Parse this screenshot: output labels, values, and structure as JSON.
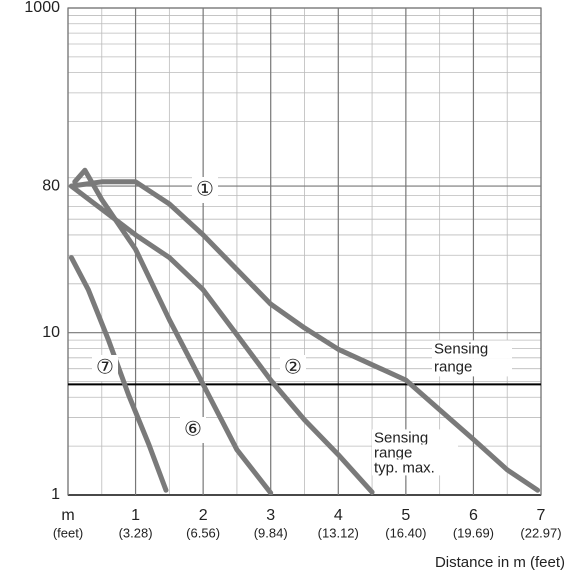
{
  "chart_data": {
    "type": "line",
    "x_label": "Distance in m (feet)",
    "xlim": [
      0,
      7
    ],
    "xticks": [
      {
        "value": 0,
        "label": "m"
      },
      1,
      2,
      3,
      4,
      5,
      6,
      7
    ],
    "xtick_sublabels": [
      "(feet)",
      "(3.28)",
      "(6.56)",
      "(9.84)",
      "(13.12)",
      "(16.40)",
      "(19.69)",
      "(22.97)"
    ],
    "ylim": [
      1,
      1000
    ],
    "log_y": true,
    "yticks": [
      1,
      10,
      80,
      1000
    ],
    "grid": true,
    "minor_grid": true,
    "series": [
      {
        "name": "①",
        "color": "#7a7a7a",
        "x": [
          0.05,
          0.5,
          1.0,
          1.5,
          2,
          2.5,
          3,
          3.5,
          4,
          5,
          5.5,
          6,
          6.5,
          6.95
        ],
        "values": [
          80,
          85,
          85,
          62,
          40,
          24.5,
          15,
          10.7,
          7.9,
          5.1,
          3.35,
          2.2,
          1.43,
          1.07
        ]
      },
      {
        "name": "②",
        "color": "#7a7a7a",
        "x": [
          0.05,
          1,
          1.5,
          2,
          2.5,
          3,
          3.5,
          4,
          4.5
        ],
        "values": [
          80,
          40,
          29,
          18.4,
          9.7,
          5.1,
          2.9,
          1.77,
          1.04
        ]
      },
      {
        "name": "⑥",
        "color": "#7a7a7a",
        "x": [
          0.1,
          0.25,
          0.5,
          1,
          1.5,
          2,
          2.5,
          3
        ],
        "values": [
          85,
          100,
          66,
          32.6,
          12,
          4.8,
          1.9,
          1.03
        ]
      },
      {
        "name": "⑦",
        "color": "#7a7a7a",
        "x": [
          0.05,
          0.3,
          0.6,
          0.9,
          1.2,
          1.45
        ],
        "values": [
          29,
          18.4,
          9,
          4.1,
          2.03,
          1.07
        ]
      }
    ],
    "threshold": 4.8,
    "threshold_label": [
      "Sensing",
      "range"
    ],
    "threshold_max_label": [
      "Sensing",
      "range",
      "typ. max."
    ]
  }
}
